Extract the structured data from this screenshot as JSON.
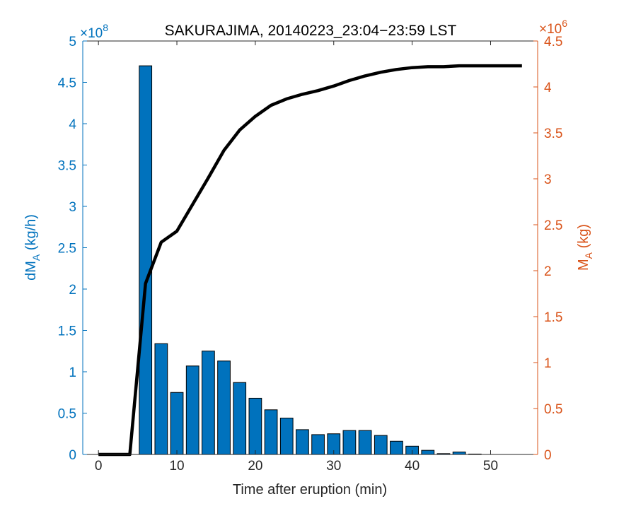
{
  "chart_data": {
    "type": "bar",
    "title": "SAKURAJIMA, 20140223_23:04−23:59 LST",
    "xlabel": "Time after eruption (min)",
    "ylabel_left": {
      "main": "dM",
      "sub": "A",
      "rest": " (kg/h)"
    },
    "ylabel_right": {
      "main": "M",
      "sub": "A",
      "rest": " (kg)"
    },
    "left_multiplier": {
      "base": "×10",
      "exp": "8"
    },
    "right_multiplier": {
      "base": "×10",
      "exp": "6"
    },
    "xlim": [
      -2,
      56
    ],
    "ylim_left": [
      0,
      5
    ],
    "ylim_right": [
      0,
      4.5
    ],
    "x_ticks": [
      0,
      10,
      20,
      30,
      40,
      50
    ],
    "x_tick_labels": [
      "0",
      "10",
      "20",
      "30",
      "40",
      "50"
    ],
    "y_left_ticks": [
      0,
      0.5,
      1,
      1.5,
      2,
      2.5,
      3,
      3.5,
      4,
      4.5,
      5
    ],
    "y_left_tick_labels": [
      "0",
      "0.5",
      "1",
      "1.5",
      "2",
      "2.5",
      "3",
      "3.5",
      "4",
      "4.5",
      "5"
    ],
    "y_right_ticks": [
      0,
      0.5,
      1,
      1.5,
      2,
      2.5,
      3,
      3.5,
      4,
      4.5
    ],
    "y_right_tick_labels": [
      "0",
      "0.5",
      "1",
      "1.5",
      "2",
      "2.5",
      "3",
      "3.5",
      "4",
      "4.5"
    ],
    "grid": false,
    "legend": "none",
    "bars": {
      "axis": "left",
      "color": "#0072BD",
      "x": [
        6,
        8,
        10,
        12,
        14,
        16,
        18,
        20,
        22,
        24,
        26,
        28,
        30,
        32,
        34,
        36,
        38,
        40,
        42,
        44,
        46,
        48
      ],
      "values": [
        4.7,
        1.34,
        0.75,
        1.07,
        1.25,
        1.13,
        0.87,
        0.68,
        0.54,
        0.44,
        0.3,
        0.24,
        0.25,
        0.29,
        0.29,
        0.23,
        0.16,
        0.1,
        0.05,
        0.01,
        0.03,
        0.005
      ]
    },
    "line": {
      "axis": "right",
      "color": "#000000",
      "x": [
        0,
        2,
        4,
        6,
        8,
        10,
        12,
        14,
        16,
        18,
        20,
        22,
        24,
        26,
        28,
        30,
        32,
        34,
        36,
        38,
        40,
        42,
        44,
        46,
        48,
        50,
        52,
        54
      ],
      "values": [
        0,
        0,
        0,
        1.86,
        2.31,
        2.43,
        2.72,
        3.01,
        3.31,
        3.53,
        3.68,
        3.8,
        3.87,
        3.92,
        3.96,
        4.01,
        4.07,
        4.12,
        4.16,
        4.19,
        4.21,
        4.22,
        4.22,
        4.23,
        4.23,
        4.23,
        4.23,
        4.23
      ]
    }
  }
}
